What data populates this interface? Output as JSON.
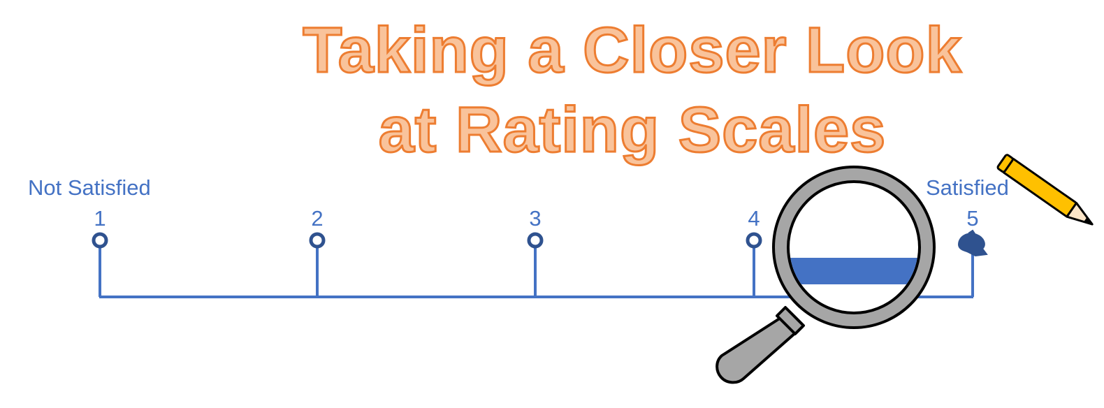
{
  "title": {
    "line1": "Taking a Closer Look",
    "line2": "at Rating Scales"
  },
  "scale": {
    "low_label": "Not Satisfied",
    "high_label": "Satisfied",
    "points": [
      "1",
      "2",
      "3",
      "4",
      "5"
    ]
  },
  "colors": {
    "title_fill": "#f9c39b",
    "title_stroke": "#ed7d31",
    "scale_blue": "#4472c4",
    "marker_dark": "#2f528f",
    "magnifier_gray": "#a6a6a6",
    "pencil_yellow": "#ffc000"
  },
  "icons": [
    "magnifying-glass-icon",
    "pencil-icon",
    "selected-marker-icon"
  ]
}
